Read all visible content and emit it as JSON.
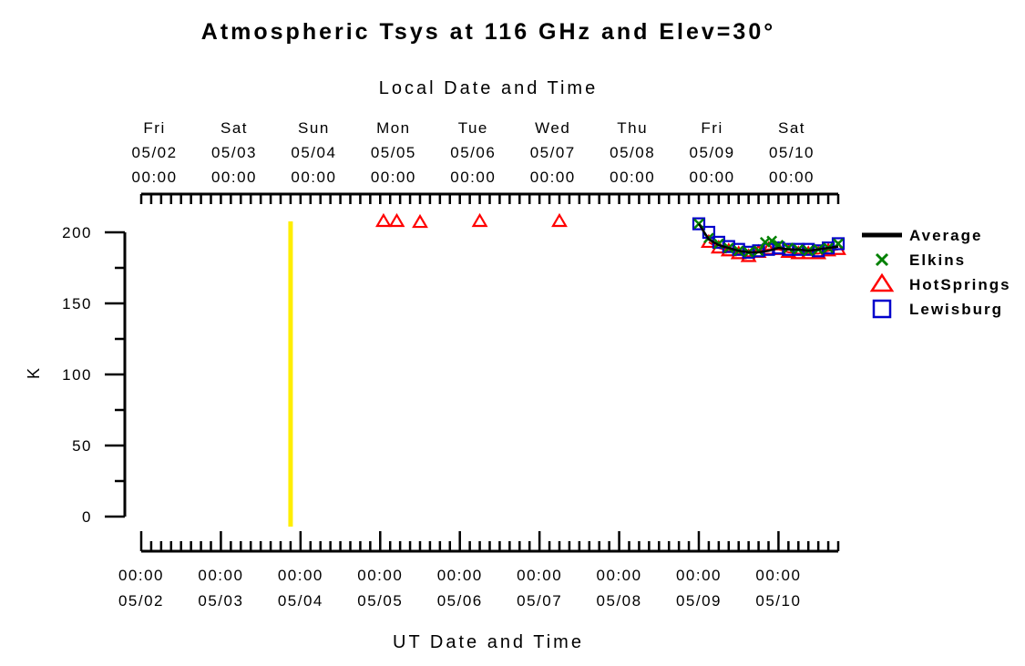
{
  "chart_data": {
    "type": "scatter",
    "title": "Atmospheric Tsys at 116 GHz and Elev=30°",
    "top_axis_label": "Local Date and Time",
    "xlabel": "UT Date and Time",
    "ylabel": "K",
    "ylim": [
      0,
      200
    ],
    "y_ticks": [
      "0",
      "50",
      "100",
      "150",
      "200"
    ],
    "x_range_ut": [
      "05/02 00:00",
      "05/10 18:00"
    ],
    "local_time_offset_hours": -4,
    "bottom_ticks": [
      {
        "date": "05/02",
        "time": "00:00"
      },
      {
        "date": "05/03",
        "time": "00:00"
      },
      {
        "date": "05/04",
        "time": "00:00"
      },
      {
        "date": "05/05",
        "time": "00:00"
      },
      {
        "date": "05/06",
        "time": "00:00"
      },
      {
        "date": "05/07",
        "time": "00:00"
      },
      {
        "date": "05/08",
        "time": "00:00"
      },
      {
        "date": "05/09",
        "time": "00:00"
      },
      {
        "date": "05/10",
        "time": "00:00"
      }
    ],
    "top_ticks": [
      {
        "day": "Fri",
        "date": "05/02",
        "time": "00:00"
      },
      {
        "day": "Sat",
        "date": "05/03",
        "time": "00:00"
      },
      {
        "day": "Sun",
        "date": "05/04",
        "time": "00:00"
      },
      {
        "day": "Mon",
        "date": "05/05",
        "time": "00:00"
      },
      {
        "day": "Tue",
        "date": "05/06",
        "time": "00:00"
      },
      {
        "day": "Wed",
        "date": "05/07",
        "time": "00:00"
      },
      {
        "day": "Thu",
        "date": "05/08",
        "time": "00:00"
      },
      {
        "day": "Fri",
        "date": "05/09",
        "time": "00:00"
      },
      {
        "day": "Sat",
        "date": "05/10",
        "time": "00:00"
      }
    ],
    "marker_line": {
      "x": "05/03 21:00",
      "color": "#ffee00"
    },
    "series": [
      {
        "name": "Average",
        "color": "#000000",
        "marker": "line",
        "x": [
          "05/09 00:00",
          "05/09 03:00",
          "05/09 06:00",
          "05/09 09:00",
          "05/09 12:00",
          "05/09 15:00",
          "05/09 18:00",
          "05/09 21:00",
          "05/10 00:00",
          "05/10 03:00",
          "05/10 06:00",
          "05/10 09:00",
          "05/10 12:00",
          "05/10 15:00",
          "05/10 18:00"
        ],
        "y": [
          206,
          195,
          191,
          189,
          187,
          186,
          186,
          187,
          189,
          188,
          188,
          187,
          188,
          189,
          190
        ]
      },
      {
        "name": "Elkins",
        "color": "#008000",
        "marker": "x",
        "x": [
          "05/09 00:00",
          "05/09 03:00",
          "05/09 06:00",
          "05/09 09:00",
          "05/09 12:00",
          "05/09 15:00",
          "05/09 18:00",
          "05/09 20:00",
          "05/09 22:00",
          "05/10 00:00",
          "05/10 03:00",
          "05/10 06:00",
          "05/10 09:00",
          "05/10 12:00",
          "05/10 15:00",
          "05/10 18:00"
        ],
        "y": [
          206,
          196,
          192,
          189,
          187,
          186,
          187,
          193,
          194,
          191,
          189,
          188,
          187,
          188,
          189,
          192
        ]
      },
      {
        "name": "HotSprings",
        "color": "#ff0000",
        "marker": "triangle",
        "x": [
          "05/05 01:00",
          "05/05 05:00",
          "05/05 12:00",
          "05/06 06:00",
          "05/07 06:00",
          "05/09 03:00",
          "05/09 06:00",
          "05/09 09:00",
          "05/09 12:00",
          "05/09 15:00",
          "05/09 18:00",
          "05/09 21:00",
          "05/10 00:00",
          "05/10 03:00",
          "05/10 06:00",
          "05/10 09:00",
          "05/10 12:00",
          "05/10 15:00",
          "05/10 18:00"
        ],
        "y": [
          208,
          208,
          207,
          208,
          208,
          193,
          189,
          187,
          185,
          183,
          186,
          188,
          188,
          186,
          185,
          185,
          185,
          187,
          188
        ]
      },
      {
        "name": "Lewisburg",
        "color": "#0000cc",
        "marker": "square",
        "x": [
          "05/09 00:00",
          "05/09 03:00",
          "05/09 06:00",
          "05/09 09:00",
          "05/09 12:00",
          "05/09 15:00",
          "05/09 18:00",
          "05/09 21:00",
          "05/10 00:00",
          "05/10 03:00",
          "05/10 06:00",
          "05/10 09:00",
          "05/10 12:00",
          "05/10 15:00",
          "05/10 18:00"
        ],
        "y": [
          206,
          200,
          193,
          190,
          188,
          186,
          187,
          188,
          189,
          188,
          188,
          188,
          187,
          189,
          192
        ]
      }
    ]
  }
}
